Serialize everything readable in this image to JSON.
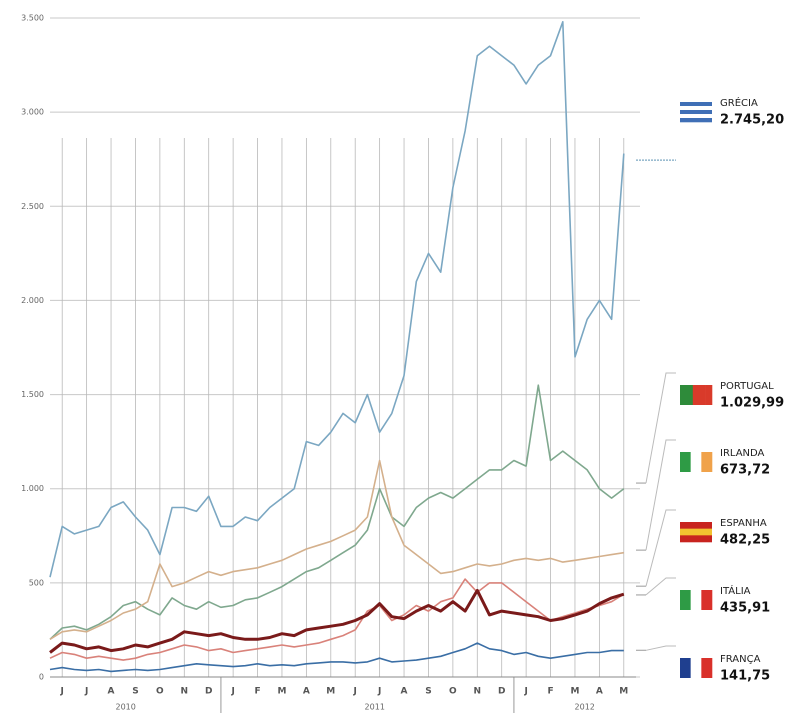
{
  "chart_data": {
    "type": "line",
    "x": [
      -0.5,
      0,
      0.5,
      1,
      1.5,
      2,
      2.5,
      3,
      3.5,
      4,
      4.5,
      5,
      5.5,
      6,
      6.5,
      7,
      7.5,
      8,
      8.5,
      9,
      9.5,
      10,
      10.5,
      11,
      11.5,
      12,
      12.5,
      13,
      13.5,
      14,
      14.5,
      15,
      15.5,
      16,
      16.5,
      17,
      17.5,
      18,
      18.5,
      19,
      19.5,
      20,
      20.5,
      21,
      21.5,
      22,
      22.5,
      23
    ],
    "xlim": [
      -0.5,
      23.5
    ],
    "xticks": [
      {
        "value": 0,
        "label": "J"
      },
      {
        "value": 1,
        "label": "J"
      },
      {
        "value": 2,
        "label": "A"
      },
      {
        "value": 3,
        "label": "S"
      },
      {
        "value": 4,
        "label": "O"
      },
      {
        "value": 5,
        "label": "N"
      },
      {
        "value": 6,
        "label": "D"
      },
      {
        "value": 7,
        "label": "J"
      },
      {
        "value": 8,
        "label": "F"
      },
      {
        "value": 9,
        "label": "M"
      },
      {
        "value": 10,
        "label": "A"
      },
      {
        "value": 11,
        "label": "M"
      },
      {
        "value": 12,
        "label": "J"
      },
      {
        "value": 13,
        "label": "J"
      },
      {
        "value": 14,
        "label": "A"
      },
      {
        "value": 15,
        "label": "S"
      },
      {
        "value": 16,
        "label": "O"
      },
      {
        "value": 17,
        "label": "N"
      },
      {
        "value": 18,
        "label": "D"
      },
      {
        "value": 19,
        "label": "J"
      },
      {
        "value": 20,
        "label": "F"
      },
      {
        "value": 21,
        "label": "M"
      },
      {
        "value": 22,
        "label": "A"
      },
      {
        "value": 23,
        "label": "M"
      }
    ],
    "year_ticks": [
      {
        "value": 2.6,
        "label": "2010"
      },
      {
        "value": 12.8,
        "label": "2011"
      },
      {
        "value": 21.4,
        "label": "2012"
      }
    ],
    "year_breaks": [
      6.5,
      18.5
    ],
    "ylim": [
      0,
      3500
    ],
    "yticks": [
      0,
      500,
      {
        "value": 1000,
        "label": "1.000"
      },
      {
        "value": 1500,
        "label": "1.500"
      },
      {
        "value": 2000,
        "label": "2.000"
      },
      {
        "value": 2500,
        "label": "2.500"
      },
      {
        "value": 3000,
        "label": "3.000"
      },
      {
        "value": 3500,
        "label": "3.500"
      }
    ],
    "grid": true,
    "series": [
      {
        "name": "GRÉCIA",
        "color": "#7ba7c2",
        "current": {
          "value": 2745.2,
          "label": "2.745,20"
        },
        "values": [
          530,
          800,
          760,
          780,
          800,
          900,
          930,
          850,
          780,
          650,
          900,
          900,
          880,
          960,
          800,
          800,
          850,
          830,
          900,
          950,
          1000,
          1250,
          1230,
          1300,
          1400,
          1350,
          1500,
          1300,
          1400,
          1600,
          2100,
          2250,
          2150,
          2600,
          2900,
          3300,
          3350,
          3300,
          3250,
          3150,
          3250,
          3300,
          3480,
          1700,
          1900,
          2000,
          1900,
          2780
        ]
      },
      {
        "name": "PORTUGAL",
        "color": "#7fa88e",
        "current": {
          "value": 1029.99,
          "label": "1.029,99"
        },
        "values": [
          200,
          260,
          270,
          250,
          280,
          320,
          380,
          400,
          360,
          330,
          420,
          380,
          360,
          400,
          370,
          380,
          410,
          420,
          450,
          480,
          520,
          560,
          580,
          620,
          660,
          700,
          780,
          1000,
          850,
          800,
          900,
          950,
          980,
          950,
          1000,
          1050,
          1100,
          1100,
          1150,
          1120,
          1550,
          1150,
          1200,
          1150,
          1100,
          1000,
          950,
          1000
        ]
      },
      {
        "name": "IRLANDA",
        "color": "#d4b08c",
        "current": {
          "value": 673.72,
          "label": "673,72"
        },
        "values": [
          200,
          240,
          250,
          240,
          270,
          300,
          340,
          360,
          400,
          600,
          480,
          500,
          530,
          560,
          540,
          560,
          570,
          580,
          600,
          620,
          650,
          680,
          700,
          720,
          750,
          780,
          850,
          1150,
          850,
          700,
          650,
          600,
          550,
          560,
          580,
          600,
          590,
          600,
          620,
          630,
          620,
          630,
          610,
          620,
          630,
          640,
          650,
          660
        ]
      },
      {
        "name": "ESPANHA",
        "color": "#7a1a1a",
        "current": {
          "value": 482.25,
          "label": "482,25"
        },
        "values": [
          130,
          180,
          170,
          150,
          160,
          140,
          150,
          170,
          160,
          180,
          200,
          240,
          230,
          220,
          230,
          210,
          200,
          200,
          210,
          230,
          220,
          250,
          260,
          270,
          280,
          300,
          330,
          390,
          320,
          310,
          350,
          380,
          350,
          400,
          350,
          460,
          330,
          350,
          340,
          330,
          320,
          300,
          310,
          330,
          350,
          390,
          420,
          440
        ]
      },
      {
        "name": "ITÁLIA",
        "color": "#d9827a",
        "current": {
          "value": 435.91,
          "label": "435,91"
        },
        "values": [
          100,
          130,
          120,
          100,
          110,
          100,
          90,
          100,
          120,
          130,
          150,
          170,
          160,
          140,
          150,
          130,
          140,
          150,
          160,
          170,
          160,
          170,
          180,
          200,
          220,
          250,
          350,
          380,
          300,
          330,
          380,
          350,
          400,
          420,
          520,
          450,
          500,
          500,
          450,
          400,
          350,
          300,
          320,
          340,
          360,
          380,
          400,
          440
        ]
      },
      {
        "name": "FRANÇA",
        "color": "#3a6ea5",
        "current": {
          "value": 141.75,
          "label": "141,75"
        },
        "values": [
          40,
          50,
          40,
          35,
          40,
          30,
          35,
          40,
          35,
          40,
          50,
          60,
          70,
          65,
          60,
          55,
          60,
          70,
          60,
          65,
          60,
          70,
          75,
          80,
          80,
          75,
          80,
          100,
          80,
          85,
          90,
          100,
          110,
          130,
          150,
          180,
          150,
          140,
          120,
          130,
          110,
          100,
          110,
          120,
          130,
          130,
          140,
          140
        ]
      }
    ]
  }
}
